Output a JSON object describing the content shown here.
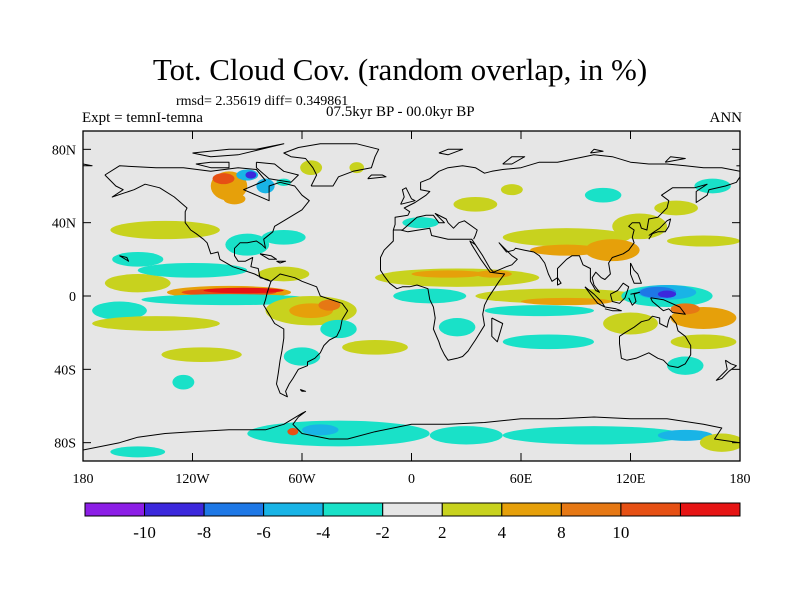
{
  "title": "Tot. Cloud Cov. (random overlap, in %)",
  "stats": "rmsd= 2.35619 diff= 0.349861",
  "experiment": "Expt = temnI-temna",
  "period": "07.5kyr BP - 00.0kyr BP",
  "season": "ANN",
  "map": {
    "projection": "cylindrical-equidistant",
    "lon_range": [
      -180,
      180
    ],
    "lat_range": [
      -90,
      90
    ],
    "background_color": "#e6e6e6",
    "lat_ticks": [
      {
        "value": 80,
        "label": "80N"
      },
      {
        "value": 40,
        "label": "40N"
      },
      {
        "value": 0,
        "label": "0"
      },
      {
        "value": -40,
        "label": "40S"
      },
      {
        "value": -80,
        "label": "80S"
      }
    ],
    "lon_ticks": [
      {
        "value": -180,
        "label": "180"
      },
      {
        "value": -120,
        "label": "120W"
      },
      {
        "value": -60,
        "label": "60W"
      },
      {
        "value": 0,
        "label": "0"
      },
      {
        "value": 60,
        "label": "60E"
      },
      {
        "value": 120,
        "label": "120E"
      },
      {
        "value": 180,
        "label": "180"
      }
    ]
  },
  "colorbar": {
    "colors": [
      "#8c1ee6",
      "#3c28dc",
      "#1e78e6",
      "#19b4e6",
      "#19e1c8",
      "#e6e6e6",
      "#c8d21e",
      "#e6a00a",
      "#e67814",
      "#e65014",
      "#e61414"
    ],
    "labels": [
      "-10",
      "-8",
      "-6",
      "-4",
      "-2",
      "2",
      "4",
      "8",
      "10"
    ]
  },
  "anomalies": [
    {
      "lon": -100,
      "lat": 2,
      "rx": 34,
      "ry": 3.5,
      "level": 2
    },
    {
      "lon": -100,
      "lat": 2,
      "rx": 26,
      "ry": 2,
      "level": 4
    },
    {
      "lon": -92,
      "lat": 3,
      "rx": 22,
      "ry": 1.5,
      "level": 5
    },
    {
      "lon": -100,
      "lat": -2,
      "rx": 48,
      "ry": 3,
      "level": -1
    },
    {
      "lon": -150,
      "lat": 7,
      "rx": 18,
      "ry": 5,
      "level": 1
    },
    {
      "lon": -120,
      "lat": 14,
      "rx": 30,
      "ry": 4,
      "level": -1
    },
    {
      "lon": -150,
      "lat": 20,
      "rx": 14,
      "ry": 4,
      "level": -1
    },
    {
      "lon": -160,
      "lat": -8,
      "rx": 15,
      "ry": 5,
      "level": -1
    },
    {
      "lon": -140,
      "lat": -15,
      "rx": 35,
      "ry": 4,
      "level": 1
    },
    {
      "lon": -115,
      "lat": -32,
      "rx": 22,
      "ry": 4,
      "level": 1
    },
    {
      "lon": -125,
      "lat": -47,
      "rx": 6,
      "ry": 4,
      "level": -1
    },
    {
      "lon": -135,
      "lat": 36,
      "rx": 30,
      "ry": 5,
      "level": 1
    },
    {
      "lon": -90,
      "lat": 28,
      "rx": 12,
      "ry": 6,
      "level": -1
    },
    {
      "lon": -70,
      "lat": 32,
      "rx": 12,
      "ry": 4,
      "level": -1
    },
    {
      "lon": -100,
      "lat": 60,
      "rx": 10,
      "ry": 8,
      "level": 2
    },
    {
      "lon": -103,
      "lat": 64,
      "rx": 6,
      "ry": 3,
      "level": 4
    },
    {
      "lon": -90,
      "lat": 66,
      "rx": 6,
      "ry": 3,
      "level": -2
    },
    {
      "lon": -88,
      "lat": 66,
      "rx": 3,
      "ry": 2,
      "level": -4
    },
    {
      "lon": -80,
      "lat": 60,
      "rx": 5,
      "ry": 4,
      "level": -2
    },
    {
      "lon": -97,
      "lat": 53,
      "rx": 6,
      "ry": 3,
      "level": 2
    },
    {
      "lon": -70,
      "lat": 62,
      "rx": 4,
      "ry": 2,
      "level": -1
    },
    {
      "lon": -55,
      "lat": 70,
      "rx": 6,
      "ry": 4,
      "level": 1
    },
    {
      "lon": -30,
      "lat": 70,
      "rx": 4,
      "ry": 3,
      "level": 1
    },
    {
      "lon": -70,
      "lat": 12,
      "rx": 14,
      "ry": 4,
      "level": 1
    },
    {
      "lon": -55,
      "lat": -8,
      "rx": 25,
      "ry": 8,
      "level": 1
    },
    {
      "lon": -55,
      "lat": -8,
      "rx": 12,
      "ry": 4,
      "level": 2
    },
    {
      "lon": -45,
      "lat": -5,
      "rx": 6,
      "ry": 3,
      "level": 3
    },
    {
      "lon": -40,
      "lat": -18,
      "rx": 10,
      "ry": 5,
      "level": -1
    },
    {
      "lon": -60,
      "lat": -33,
      "rx": 10,
      "ry": 5,
      "level": -1
    },
    {
      "lon": -20,
      "lat": -28,
      "rx": 18,
      "ry": 4,
      "level": 1
    },
    {
      "lon": 25,
      "lat": 10,
      "rx": 45,
      "ry": 5,
      "level": 1
    },
    {
      "lon": 20,
      "lat": 12,
      "rx": 20,
      "ry": 2,
      "level": 2
    },
    {
      "lon": 45,
      "lat": 12,
      "rx": 10,
      "ry": 2,
      "level": 2
    },
    {
      "lon": 10,
      "lat": 0,
      "rx": 20,
      "ry": 4,
      "level": -1
    },
    {
      "lon": 25,
      "lat": -17,
      "rx": 10,
      "ry": 5,
      "level": -1
    },
    {
      "lon": 5,
      "lat": 40,
      "rx": 10,
      "ry": 3,
      "level": -1
    },
    {
      "lon": 35,
      "lat": 50,
      "rx": 12,
      "ry": 4,
      "level": 1
    },
    {
      "lon": 55,
      "lat": 58,
      "rx": 6,
      "ry": 3,
      "level": 1
    },
    {
      "lon": 85,
      "lat": 32,
      "rx": 35,
      "ry": 5,
      "level": 1
    },
    {
      "lon": 85,
      "lat": 25,
      "rx": 20,
      "ry": 3,
      "level": 2
    },
    {
      "lon": 110,
      "lat": 25,
      "rx": 15,
      "ry": 6,
      "level": 2
    },
    {
      "lon": 125,
      "lat": 38,
      "rx": 15,
      "ry": 7,
      "level": 1
    },
    {
      "lon": 145,
      "lat": 48,
      "rx": 12,
      "ry": 4,
      "level": 1
    },
    {
      "lon": 105,
      "lat": 55,
      "rx": 10,
      "ry": 4,
      "level": -1
    },
    {
      "lon": 165,
      "lat": 60,
      "rx": 10,
      "ry": 4,
      "level": -1
    },
    {
      "lon": 160,
      "lat": 30,
      "rx": 20,
      "ry": 3,
      "level": 1
    },
    {
      "lon": 80,
      "lat": 0,
      "rx": 45,
      "ry": 4,
      "level": 1
    },
    {
      "lon": 85,
      "lat": -3,
      "rx": 25,
      "ry": 2,
      "level": 2
    },
    {
      "lon": 70,
      "lat": -8,
      "rx": 30,
      "ry": 3,
      "level": -1
    },
    {
      "lon": 75,
      "lat": -25,
      "rx": 25,
      "ry": 4,
      "level": -1
    },
    {
      "lon": 120,
      "lat": -15,
      "rx": 15,
      "ry": 6,
      "level": 1
    },
    {
      "lon": 140,
      "lat": 0,
      "rx": 25,
      "ry": 6,
      "level": -1
    },
    {
      "lon": 140,
      "lat": 2,
      "rx": 16,
      "ry": 4,
      "level": -2
    },
    {
      "lon": 135,
      "lat": 2,
      "rx": 10,
      "ry": 3,
      "level": -3
    },
    {
      "lon": 140,
      "lat": 1,
      "rx": 5,
      "ry": 2,
      "level": -4
    },
    {
      "lon": 160,
      "lat": -12,
      "rx": 18,
      "ry": 6,
      "level": 2
    },
    {
      "lon": 150,
      "lat": -7,
      "rx": 8,
      "ry": 3,
      "level": 3
    },
    {
      "lon": 160,
      "lat": -25,
      "rx": 18,
      "ry": 4,
      "level": 1
    },
    {
      "lon": 150,
      "lat": -38,
      "rx": 10,
      "ry": 5,
      "level": -1
    },
    {
      "lon": -40,
      "lat": -75,
      "rx": 50,
      "ry": 7,
      "level": -1
    },
    {
      "lon": -50,
      "lat": -73,
      "rx": 10,
      "ry": 3,
      "level": -2
    },
    {
      "lon": -65,
      "lat": -74,
      "rx": 3,
      "ry": 2,
      "level": 4
    },
    {
      "lon": 30,
      "lat": -76,
      "rx": 20,
      "ry": 5,
      "level": -1
    },
    {
      "lon": 100,
      "lat": -76,
      "rx": 50,
      "ry": 5,
      "level": -1
    },
    {
      "lon": 150,
      "lat": -76,
      "rx": 15,
      "ry": 3,
      "level": -2
    },
    {
      "lon": 170,
      "lat": -80,
      "rx": 12,
      "ry": 5,
      "level": 1
    },
    {
      "lon": -150,
      "lat": -85,
      "rx": 15,
      "ry": 3,
      "level": -1
    }
  ]
}
